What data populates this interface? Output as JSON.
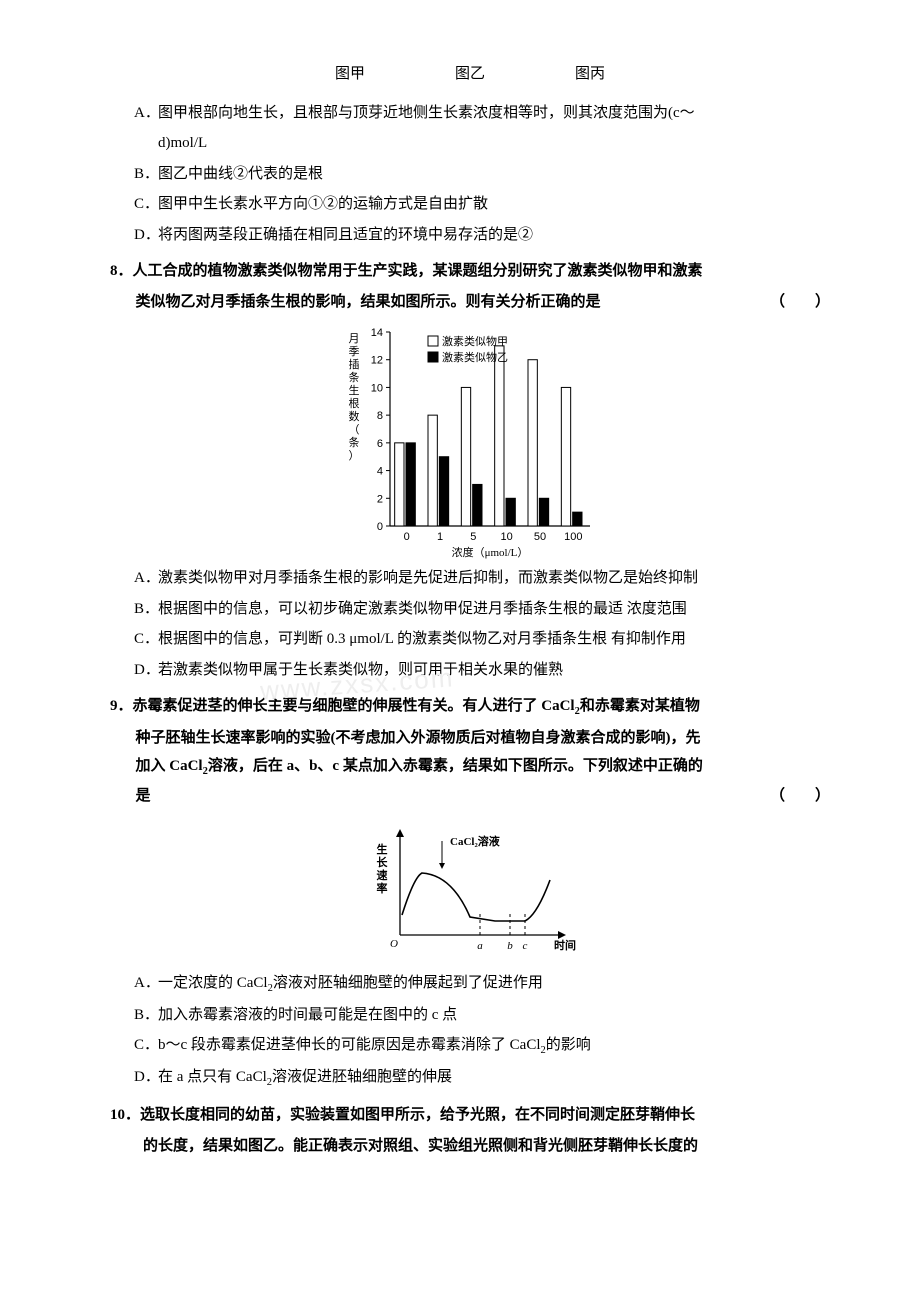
{
  "captions": {
    "a": "图甲",
    "b": "图乙",
    "c": "图丙"
  },
  "q7": {
    "optA": {
      "lab": "A．",
      "text": "图甲根部向地生长，且根部与顶芽近地侧生长素浓度相等时，则其浓度范围为(c～",
      "cont": "d)mol/L"
    },
    "optB": {
      "lab": "B．",
      "text": "图乙中曲线②代表的是根"
    },
    "optC": {
      "lab": "C．",
      "text": "图甲中生长素水平方向①②的运输方式是自由扩散"
    },
    "optD": {
      "lab": "D．",
      "text": "将丙图两茎段正确插在相同且适宜的环境中易存活的是②"
    }
  },
  "q8": {
    "num": "8．",
    "stem1": "人工合成的植物激素类似物常用于生产实践，某课题组分别研究了激素类似物甲和激素",
    "stem2": "类似物乙对月季插条生根的影响，结果如图所示。则有关分析正确的是",
    "paren": "（　　）",
    "optA": {
      "lab": "A．",
      "text": "激素类似物甲对月季插条生根的影响是先促进后抑制，而激素类似物乙是始终抑制"
    },
    "optB": {
      "lab": "B．",
      "text": "根据图中的信息，可以初步确定激素类似物甲促进月季插条生根的最适 浓度范围"
    },
    "optC": {
      "lab": "C．",
      "text": "根据图中的信息，可判断 0.3 μmol/L 的激素类似物乙对月季插条生根 有抑制作用"
    },
    "optD": {
      "lab": "D．",
      "text": "若激素类似物甲属于生长素类似物，则可用于相关水果的催熟"
    },
    "chart": {
      "y_label": "月季插条生根数（条）",
      "x_label": "浓度（μmol/L）",
      "legend": {
        "a": "激素类似物甲",
        "b": "激素类似物乙"
      },
      "categories": [
        "0",
        "1",
        "5",
        "10",
        "50",
        "100"
      ],
      "series_a": {
        "values": [
          6,
          8,
          10,
          13,
          12,
          10
        ],
        "fill": "#ffffff",
        "stroke": "#000000"
      },
      "series_b": {
        "values": [
          6,
          5,
          3,
          2,
          2,
          1
        ],
        "fill": "#000000",
        "stroke": "#000000"
      },
      "y_ticks": [
        0,
        2,
        4,
        6,
        8,
        10,
        12,
        14
      ],
      "y_max": 14,
      "axis_color": "#000000",
      "font_size": 11
    }
  },
  "q9": {
    "num": "9．",
    "stem1": "赤霉素促进茎的伸长主要与细胞壁的伸展性有关。有人进行了 CaCl",
    "stem1b": "和赤霉素对某植物",
    "stem2a": "种子胚轴生长速率影响的实验(不考虑加入外源物质后对植物自身激素合成的影响)，先",
    "stem2b": "加入 CaCl",
    "stem2c": "溶液，后在 a、b、c 某点加入赤霉素，结果如下图所示。下列叙述中正确的",
    "stem3": "是",
    "paren": "（　　）",
    "optA": {
      "lab": "A．",
      "text_a": "一定浓度的 CaCl",
      "text_b": "溶液对胚轴细胞壁的伸展起到了促进作用"
    },
    "optB": {
      "lab": "B．",
      "text": "加入赤霉素溶液的时间最可能是在图中的 c 点"
    },
    "optC": {
      "lab": "C．",
      "text_a": "b～c 段赤霉素促进茎伸长的可能原因是赤霉素消除了 CaCl",
      "text_b": "的影响"
    },
    "optD": {
      "lab": "D．",
      "text_a": "在 a 点只有 CaCl",
      "text_b": "溶液促进胚轴细胞壁的伸展"
    },
    "chart": {
      "y_label": "生长速率",
      "x_label": "时间",
      "arrow_label": "CaCl₂溶液",
      "points": [
        "a",
        "b",
        "c"
      ],
      "axis_color": "#000000",
      "line_color": "#000000",
      "font_size": 11
    }
  },
  "q10": {
    "num": "10．",
    "stem1": "选取长度相同的幼苗，实验装置如图甲所示，给予光照，在不同时间测定胚芽鞘伸长",
    "stem2": "的长度，结果如图乙。能正确表示对照组、实验组光照侧和背光侧胚芽鞘伸长长度的"
  }
}
